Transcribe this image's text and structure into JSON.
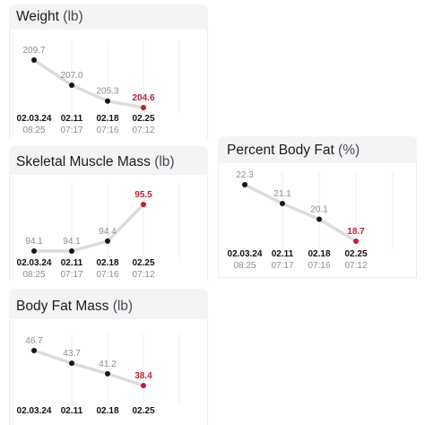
{
  "colors": {
    "line": "#dcdcdc",
    "point": "#15161c",
    "point_last": "#c21e35",
    "grid": "#ececee",
    "card_header": "#f4f4f6"
  },
  "cards": [
    {
      "id": "weight",
      "title": "Weight",
      "unit": "(lb)",
      "values": [
        "209.7",
        "207.0",
        "205.3",
        "204.6"
      ],
      "dates": [
        "02.03.24",
        "02.11",
        "02.18",
        "02.25"
      ],
      "times": [
        "08:25",
        "07:17",
        "07:16",
        "07:12"
      ]
    },
    {
      "id": "skeletal-muscle-mass",
      "title": "Skeletal Muscle Mass",
      "unit": "(lb)",
      "values": [
        "94.1",
        "94.1",
        "94.4",
        "95.5"
      ],
      "dates": [
        "02.03.24",
        "02.11",
        "02.18",
        "02.25"
      ],
      "times": [
        "08:25",
        "07:17",
        "07:16",
        "07:12"
      ]
    },
    {
      "id": "percent-body-fat",
      "title": "Percent Body Fat",
      "unit": "(%)",
      "values": [
        "22.3",
        "21.1",
        "20.1",
        "18.7"
      ],
      "dates": [
        "02.03.24",
        "02.11",
        "02.18",
        "02.25"
      ],
      "times": [
        "08:25",
        "07:17",
        "07:16",
        "07:12"
      ]
    },
    {
      "id": "body-fat-mass",
      "title": "Body Fat Mass",
      "unit": "(lb)",
      "values": [
        "46.7",
        "43.7",
        "41.2",
        "38.4"
      ],
      "dates": [
        "02.03.24",
        "02.11",
        "02.18",
        "02.25"
      ],
      "times": []
    }
  ],
  "chart_data": [
    {
      "type": "line",
      "title": "Weight (lb)",
      "x": [
        "02.03.24",
        "02.11",
        "02.18",
        "02.25"
      ],
      "values": [
        209.7,
        207.0,
        205.3,
        204.6
      ]
    },
    {
      "type": "line",
      "title": "Skeletal Muscle Mass (lb)",
      "x": [
        "02.03.24",
        "02.11",
        "02.18",
        "02.25"
      ],
      "values": [
        94.1,
        94.1,
        94.4,
        95.5
      ]
    },
    {
      "type": "line",
      "title": "Percent Body Fat (%)",
      "x": [
        "02.03.24",
        "02.11",
        "02.18",
        "02.25"
      ],
      "values": [
        22.3,
        21.1,
        20.1,
        18.7
      ]
    },
    {
      "type": "line",
      "title": "Body Fat Mass (lb)",
      "x": [
        "02.03.24",
        "02.11",
        "02.18",
        "02.25"
      ],
      "values": [
        46.7,
        43.7,
        41.2,
        38.4
      ]
    }
  ]
}
